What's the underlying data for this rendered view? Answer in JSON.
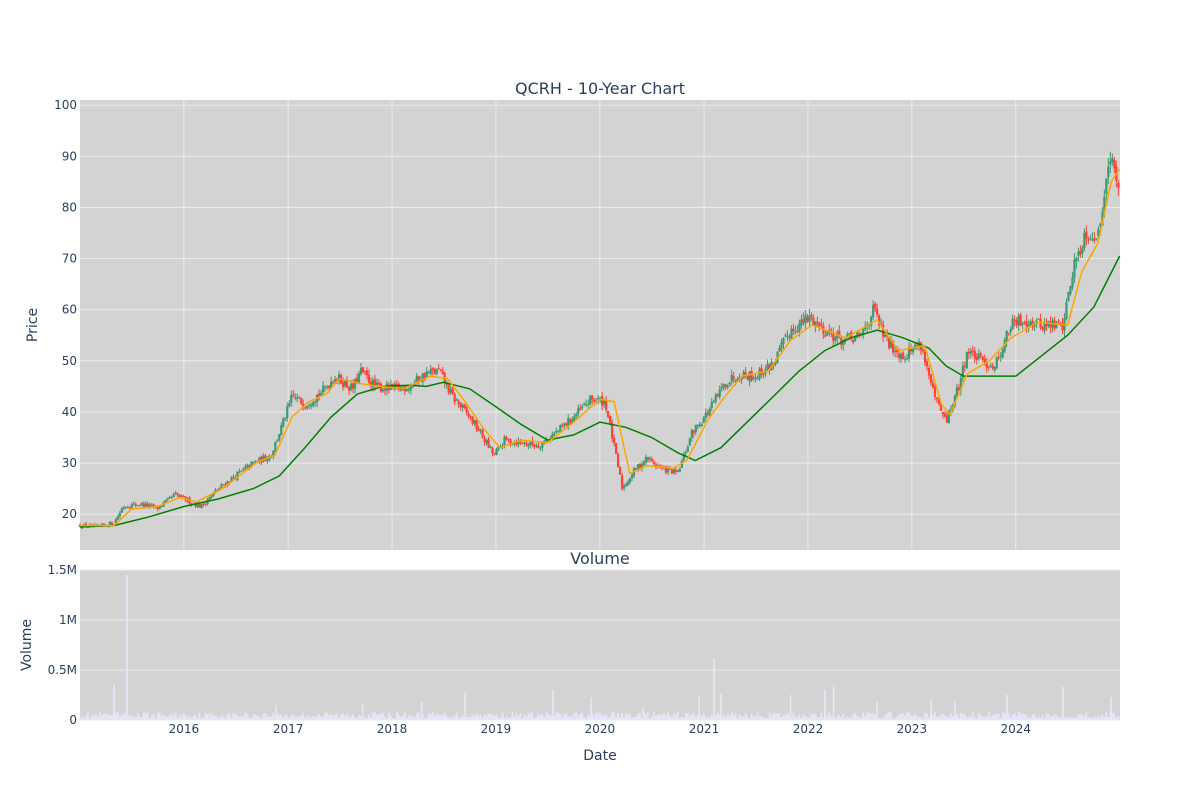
{
  "chart_data": [
    {
      "type": "candlestick",
      "title": "QCRH - 10-Year Chart",
      "ylabel": "Price",
      "ylim": [
        13,
        101
      ],
      "yticks": [
        20,
        30,
        40,
        50,
        60,
        70,
        80,
        90,
        100
      ],
      "xlim": [
        "2015-01-01",
        "2025-01-01"
      ],
      "grid": true,
      "colors": {
        "background": "#d3d3d3",
        "grid": "#ebebeb",
        "up": "#3d9970",
        "down": "#ff4136",
        "ma_short": "#ffa500",
        "ma_long": "#008000"
      },
      "price_path": [
        [
          "2015-01-01",
          17.8
        ],
        [
          "2015-03-01",
          17.5
        ],
        [
          "2015-05-01",
          18.3
        ],
        [
          "2015-06-01",
          21.5
        ],
        [
          "2015-08-01",
          22.0
        ],
        [
          "2015-10-01",
          21.2
        ],
        [
          "2015-12-01",
          23.8
        ],
        [
          "2016-01-20",
          22.5
        ],
        [
          "2016-03-01",
          21.5
        ],
        [
          "2016-05-01",
          25.0
        ],
        [
          "2016-07-01",
          27.5
        ],
        [
          "2016-09-01",
          30.0
        ],
        [
          "2016-11-01",
          31.5
        ],
        [
          "2016-12-15",
          38.0
        ],
        [
          "2017-01-15",
          43.0
        ],
        [
          "2017-03-01",
          41.5
        ],
        [
          "2017-05-01",
          44.0
        ],
        [
          "2017-06-15",
          47.0
        ],
        [
          "2017-08-15",
          44.5
        ],
        [
          "2017-09-15",
          48.0
        ],
        [
          "2017-11-01",
          45.0
        ],
        [
          "2018-01-01",
          44.5
        ],
        [
          "2018-03-01",
          45.0
        ],
        [
          "2018-05-01",
          47.5
        ],
        [
          "2018-06-15",
          48.0
        ],
        [
          "2018-08-01",
          43.0
        ],
        [
          "2018-10-01",
          39.0
        ],
        [
          "2018-11-01",
          36.5
        ],
        [
          "2018-12-25",
          31.5
        ],
        [
          "2019-02-01",
          34.5
        ],
        [
          "2019-04-01",
          34.0
        ],
        [
          "2019-06-01",
          33.5
        ],
        [
          "2019-08-01",
          36.0
        ],
        [
          "2019-10-01",
          39.0
        ],
        [
          "2019-12-01",
          42.5
        ],
        [
          "2020-01-20",
          42.0
        ],
        [
          "2020-03-20",
          25.0
        ],
        [
          "2020-05-01",
          28.5
        ],
        [
          "2020-06-15",
          31.0
        ],
        [
          "2020-08-01",
          29.0
        ],
        [
          "2020-10-01",
          28.0
        ],
        [
          "2020-11-20",
          36.0
        ],
        [
          "2021-01-15",
          40.0
        ],
        [
          "2021-03-15",
          45.5
        ],
        [
          "2021-05-01",
          47.5
        ],
        [
          "2021-07-01",
          47.0
        ],
        [
          "2021-09-01",
          49.5
        ],
        [
          "2021-11-01",
          56.0
        ],
        [
          "2022-01-10",
          58.5
        ],
        [
          "2022-03-01",
          56.0
        ],
        [
          "2022-05-01",
          54.0
        ],
        [
          "2022-07-01",
          54.5
        ],
        [
          "2022-08-20",
          60.0
        ],
        [
          "2022-10-01",
          54.0
        ],
        [
          "2022-12-01",
          51.0
        ],
        [
          "2023-02-01",
          53.5
        ],
        [
          "2023-03-20",
          43.0
        ],
        [
          "2023-05-01",
          38.0
        ],
        [
          "2023-06-15",
          45.0
        ],
        [
          "2023-07-15",
          52.0
        ],
        [
          "2023-09-01",
          50.0
        ],
        [
          "2023-10-20",
          49.0
        ],
        [
          "2023-12-15",
          57.0
        ],
        [
          "2024-02-01",
          58.0
        ],
        [
          "2024-04-01",
          57.0
        ],
        [
          "2024-06-15",
          57.0
        ],
        [
          "2024-07-20",
          68.0
        ],
        [
          "2024-09-01",
          75.0
        ],
        [
          "2024-10-20",
          74.5
        ],
        [
          "2024-11-20",
          90.0
        ],
        [
          "2024-12-15",
          87.0
        ],
        [
          "2024-12-31",
          81.0
        ]
      ],
      "ma_short_path": [
        [
          "2015-01-01",
          17.8
        ],
        [
          "2015-05-01",
          17.8
        ],
        [
          "2015-07-01",
          21.0
        ],
        [
          "2015-10-01",
          21.5
        ],
        [
          "2015-12-15",
          23.2
        ],
        [
          "2016-02-15",
          22.4
        ],
        [
          "2016-05-15",
          25.0
        ],
        [
          "2016-09-15",
          30.2
        ],
        [
          "2016-11-15",
          31.5
        ],
        [
          "2017-01-15",
          39.0
        ],
        [
          "2017-03-15",
          42.0
        ],
        [
          "2017-05-15",
          43.5
        ],
        [
          "2017-07-01",
          46.5
        ],
        [
          "2017-09-15",
          45.5
        ],
        [
          "2017-11-15",
          45.0
        ],
        [
          "2018-02-15",
          44.6
        ],
        [
          "2018-05-15",
          47.0
        ],
        [
          "2018-07-15",
          46.5
        ],
        [
          "2018-09-15",
          42.0
        ],
        [
          "2018-11-15",
          37.0
        ],
        [
          "2019-01-15",
          33.0
        ],
        [
          "2019-04-01",
          34.5
        ],
        [
          "2019-07-01",
          34.0
        ],
        [
          "2019-10-01",
          38.0
        ],
        [
          "2020-01-01",
          42.5
        ],
        [
          "2020-02-20",
          42.0
        ],
        [
          "2020-04-15",
          28.0
        ],
        [
          "2020-06-15",
          29.5
        ],
        [
          "2020-09-15",
          29.0
        ],
        [
          "2020-11-01",
          30.5
        ],
        [
          "2021-01-15",
          38.5
        ],
        [
          "2021-03-15",
          43.0
        ],
        [
          "2021-05-15",
          47.0
        ],
        [
          "2021-08-15",
          48.0
        ],
        [
          "2021-11-01",
          54.0
        ],
        [
          "2022-01-15",
          57.0
        ],
        [
          "2022-05-15",
          54.5
        ],
        [
          "2022-09-01",
          58.0
        ],
        [
          "2022-11-15",
          52.0
        ],
        [
          "2023-02-15",
          53.0
        ],
        [
          "2023-04-15",
          41.5
        ],
        [
          "2023-05-15",
          39.5
        ],
        [
          "2023-07-15",
          47.5
        ],
        [
          "2023-10-01",
          50.0
        ],
        [
          "2023-12-15",
          54.5
        ],
        [
          "2024-03-15",
          57.5
        ],
        [
          "2024-07-01",
          57.0
        ],
        [
          "2024-08-20",
          67.5
        ],
        [
          "2024-10-15",
          73.0
        ],
        [
          "2024-12-01",
          85.0
        ],
        [
          "2024-12-31",
          87.5
        ]
      ],
      "ma_long_path": [
        [
          "2015-01-01",
          17.5
        ],
        [
          "2015-05-01",
          17.8
        ],
        [
          "2015-09-01",
          19.5
        ],
        [
          "2016-01-01",
          21.5
        ],
        [
          "2016-05-01",
          23.0
        ],
        [
          "2016-09-01",
          25.0
        ],
        [
          "2016-12-01",
          27.5
        ],
        [
          "2017-03-01",
          33.0
        ],
        [
          "2017-06-01",
          39.0
        ],
        [
          "2017-09-01",
          43.5
        ],
        [
          "2017-12-01",
          45.0
        ],
        [
          "2018-03-01",
          45.2
        ],
        [
          "2018-05-01",
          45.0
        ],
        [
          "2018-07-01",
          45.8
        ],
        [
          "2018-10-01",
          44.5
        ],
        [
          "2019-01-01",
          41.0
        ],
        [
          "2019-04-01",
          37.5
        ],
        [
          "2019-07-01",
          34.5
        ],
        [
          "2019-10-01",
          35.5
        ],
        [
          "2020-01-01",
          38.0
        ],
        [
          "2020-04-01",
          37.0
        ],
        [
          "2020-07-01",
          35.0
        ],
        [
          "2020-10-01",
          32.0
        ],
        [
          "2020-12-01",
          30.5
        ],
        [
          "2021-03-01",
          33.0
        ],
        [
          "2021-06-01",
          38.0
        ],
        [
          "2021-09-01",
          43.0
        ],
        [
          "2021-12-01",
          48.0
        ],
        [
          "2022-03-01",
          52.0
        ],
        [
          "2022-06-01",
          54.5
        ],
        [
          "2022-09-01",
          56.0
        ],
        [
          "2022-12-01",
          54.5
        ],
        [
          "2023-03-01",
          52.5
        ],
        [
          "2023-05-01",
          49.0
        ],
        [
          "2023-07-01",
          47.0
        ],
        [
          "2023-10-01",
          47.0
        ],
        [
          "2024-01-01",
          47.0
        ],
        [
          "2024-04-01",
          51.0
        ],
        [
          "2024-07-01",
          55.0
        ],
        [
          "2024-10-01",
          60.5
        ],
        [
          "2024-12-31",
          70.5
        ]
      ]
    },
    {
      "type": "bar",
      "title": "Volume",
      "xlabel": "Date",
      "ylabel": "Volume",
      "ylim": [
        0,
        1500000
      ],
      "yticks": [
        0,
        500000,
        1000000,
        1500000
      ],
      "ytick_labels": [
        "0",
        "0.5M",
        "1M",
        "1.5M"
      ],
      "xticks": [
        "2016-01-01",
        "2017-01-01",
        "2018-01-01",
        "2019-01-01",
        "2020-01-01",
        "2021-01-01",
        "2022-01-01",
        "2023-01-01",
        "2024-01-01"
      ],
      "xtick_labels": [
        "2016",
        "2017",
        "2018",
        "2019",
        "2020",
        "2021",
        "2022",
        "2023",
        "2024"
      ],
      "bar_color": "#e6e6fa",
      "baseline_volume": 40000,
      "spikes": [
        [
          "2015-05-01",
          350000
        ],
        [
          "2015-06-15",
          1450000
        ],
        [
          "2016-11-20",
          150000
        ],
        [
          "2017-09-20",
          160000
        ],
        [
          "2018-04-15",
          180000
        ],
        [
          "2018-09-15",
          280000
        ],
        [
          "2019-07-20",
          300000
        ],
        [
          "2019-12-01",
          230000
        ],
        [
          "2020-06-01",
          120000
        ],
        [
          "2020-12-15",
          250000
        ],
        [
          "2021-02-05",
          620000
        ],
        [
          "2021-03-01",
          270000
        ],
        [
          "2021-11-01",
          250000
        ],
        [
          "2022-03-01",
          300000
        ],
        [
          "2022-04-01",
          350000
        ],
        [
          "2022-09-01",
          180000
        ],
        [
          "2023-03-10",
          200000
        ],
        [
          "2023-06-01",
          190000
        ],
        [
          "2023-12-01",
          250000
        ],
        [
          "2024-06-15",
          330000
        ],
        [
          "2024-12-01",
          230000
        ]
      ]
    }
  ]
}
